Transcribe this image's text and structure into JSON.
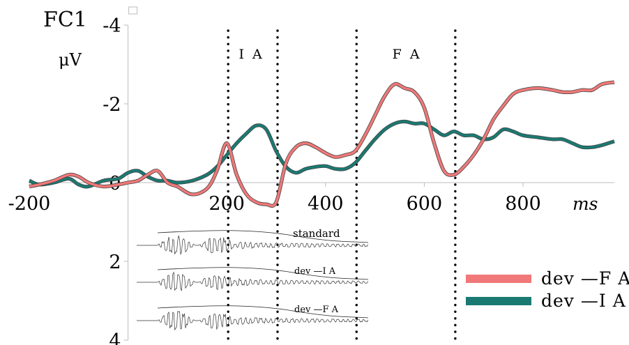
{
  "chart_data": {
    "type": "line",
    "channel_label": "FC1",
    "ylabel": "μV",
    "xlabel": "ms",
    "y_axis_inverted": true,
    "xlim": [
      -200,
      985
    ],
    "ylim": [
      -4,
      4
    ],
    "x_ticks": [
      -200,
      200,
      400,
      600,
      800
    ],
    "x_tick_labels": [
      "-200",
      "200",
      "400",
      "600",
      "800"
    ],
    "y_ticks": [
      -4,
      -2,
      0,
      2,
      4
    ],
    "y_tick_labels": [
      "-4",
      "-2",
      "0",
      "2",
      "4"
    ],
    "dotted_markers": [
      200,
      300,
      460,
      660
    ],
    "region_labels": [
      {
        "text": "I A",
        "x": 250
      },
      {
        "text": "F A",
        "x": 565
      }
    ],
    "legend_position": "bottom-right",
    "series": [
      {
        "name": "dev —F A",
        "color": "#f07878",
        "x": [
          -200,
          -180,
          -150,
          -120,
          -100,
          -80,
          -50,
          -20,
          0,
          20,
          40,
          60,
          80,
          100,
          130,
          160,
          180,
          200,
          220,
          240,
          260,
          280,
          300,
          320,
          340,
          360,
          380,
          400,
          420,
          440,
          460,
          480,
          500,
          520,
          540,
          560,
          580,
          600,
          620,
          640,
          660,
          680,
          700,
          720,
          740,
          760,
          780,
          800,
          830,
          860,
          880,
          900,
          920,
          940,
          960,
          985
        ],
        "y": [
          0.1,
          0.05,
          -0.05,
          -0.2,
          -0.15,
          0.0,
          0.1,
          0.05,
          0.0,
          -0.05,
          -0.2,
          -0.3,
          0.0,
          0.1,
          0.3,
          0.15,
          -0.3,
          -1.0,
          -0.2,
          0.3,
          0.5,
          0.55,
          0.5,
          -0.5,
          -0.9,
          -1.0,
          -0.9,
          -0.75,
          -0.65,
          -0.7,
          -0.8,
          -1.2,
          -1.7,
          -2.2,
          -2.5,
          -2.4,
          -2.3,
          -1.9,
          -1.0,
          -0.3,
          -0.2,
          -0.4,
          -0.7,
          -1.1,
          -1.6,
          -1.95,
          -2.25,
          -2.35,
          -2.4,
          -2.35,
          -2.3,
          -2.3,
          -2.35,
          -2.35,
          -2.5,
          -2.55
        ]
      },
      {
        "name": "dev —I A",
        "color": "#1a7a72",
        "x": [
          -200,
          -180,
          -150,
          -120,
          -100,
          -80,
          -50,
          -20,
          0,
          20,
          40,
          60,
          80,
          100,
          130,
          160,
          180,
          200,
          220,
          240,
          260,
          280,
          300,
          320,
          340,
          360,
          380,
          400,
          420,
          440,
          460,
          480,
          500,
          520,
          540,
          560,
          580,
          600,
          620,
          640,
          660,
          680,
          700,
          720,
          740,
          760,
          780,
          800,
          830,
          860,
          880,
          900,
          920,
          940,
          960,
          985
        ],
        "y": [
          -0.05,
          0.05,
          0.0,
          -0.1,
          0.05,
          0.1,
          -0.05,
          -0.1,
          -0.25,
          -0.3,
          -0.15,
          -0.05,
          -0.05,
          0.0,
          -0.05,
          -0.2,
          -0.4,
          -0.7,
          -1.0,
          -1.25,
          -1.45,
          -1.35,
          -0.8,
          -0.4,
          -0.25,
          -0.35,
          -0.4,
          -0.42,
          -0.35,
          -0.35,
          -0.5,
          -0.8,
          -1.1,
          -1.35,
          -1.5,
          -1.55,
          -1.5,
          -1.5,
          -1.35,
          -1.2,
          -1.3,
          -1.2,
          -1.2,
          -1.1,
          -1.15,
          -1.35,
          -1.3,
          -1.2,
          -1.15,
          -1.1,
          -1.1,
          -1.0,
          -0.9,
          -0.9,
          -0.95,
          -1.05
        ]
      }
    ],
    "stimulus_panel": {
      "labels": [
        "standard",
        "dev —I A",
        "dev —F A"
      ]
    }
  }
}
